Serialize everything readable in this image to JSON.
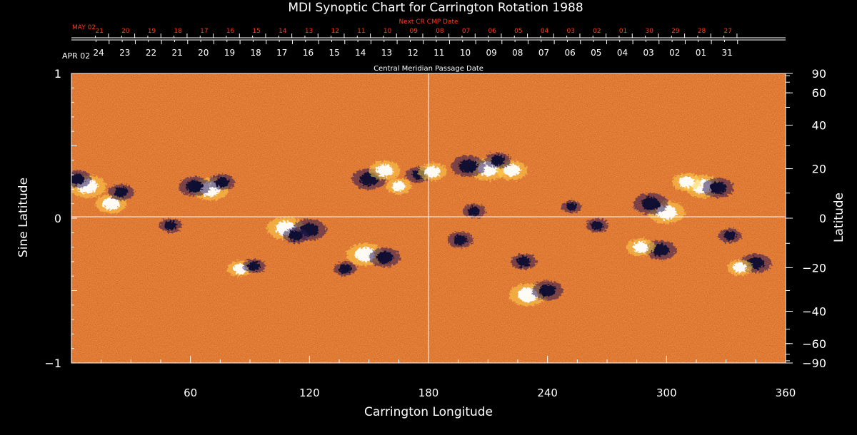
{
  "chart_data": {
    "type": "heatmap",
    "title": "MDI Synoptic Chart for Carrington Rotation 1988",
    "xlabel": "Carrington Longitude",
    "ylabel_left": "Sine Latitude",
    "ylabel_right": "Latitude",
    "xlim": [
      0,
      360
    ],
    "ylim_sine": [
      -1,
      1
    ],
    "x_ticks": [
      60,
      120,
      180,
      240,
      300,
      360
    ],
    "y_left_ticks": [
      {
        "value": 1,
        "label": "1"
      },
      {
        "value": 0,
        "label": "0"
      },
      {
        "value": -1,
        "label": "−1"
      }
    ],
    "y_right_ticks": [
      {
        "deg": 90,
        "label": "90"
      },
      {
        "deg": 60,
        "label": "60"
      },
      {
        "deg": 40,
        "label": "40"
      },
      {
        "deg": 20,
        "label": "20"
      },
      {
        "deg": 0,
        "label": "0"
      },
      {
        "deg": -20,
        "label": "−20"
      },
      {
        "deg": -40,
        "label": "−40"
      },
      {
        "deg": -60,
        "label": "−60"
      },
      {
        "deg": -90,
        "label": "−90"
      }
    ],
    "grid": "crosshair at longitude 180 and sine latitude 0",
    "colors": {
      "background": "#000000",
      "map_base": "#e8521a",
      "positive_polarity": "#ffffff",
      "negative_polarity": "#0a0a30",
      "secondary_axis_text": "#ff3b1f"
    },
    "next_cr_axis": {
      "title": "Next CR CMP Date",
      "start_label": "MAY 02",
      "dates": [
        "21",
        "20",
        "19",
        "18",
        "17",
        "16",
        "15",
        "14",
        "13",
        "12",
        "11",
        "10",
        "09",
        "08",
        "07",
        "06",
        "05",
        "04",
        "03",
        "02",
        "01",
        "30",
        "29",
        "28",
        "27"
      ]
    },
    "cmp_axis": {
      "title": "Central Meridian Passage Date",
      "start_label": "APR 02",
      "dates": [
        "24",
        "23",
        "22",
        "21",
        "20",
        "19",
        "18",
        "17",
        "16",
        "15",
        "14",
        "13",
        "12",
        "11",
        "10",
        "09",
        "08",
        "07",
        "06",
        "05",
        "04",
        "03",
        "02",
        "01",
        "31"
      ]
    },
    "regions": [
      {
        "lon": 8,
        "lat": 0.22,
        "polarity": "positive",
        "strength": 1.0
      },
      {
        "lon": 20,
        "lat": 0.1,
        "polarity": "positive",
        "strength": 0.8
      },
      {
        "lon": 3,
        "lat": 0.27,
        "polarity": "negative",
        "strength": 0.7
      },
      {
        "lon": 25,
        "lat": 0.18,
        "polarity": "negative",
        "strength": 0.6
      },
      {
        "lon": 70,
        "lat": 0.2,
        "polarity": "positive",
        "strength": 1.0
      },
      {
        "lon": 62,
        "lat": 0.22,
        "polarity": "negative",
        "strength": 0.8
      },
      {
        "lon": 76,
        "lat": 0.25,
        "polarity": "negative",
        "strength": 0.6
      },
      {
        "lon": 50,
        "lat": -0.05,
        "polarity": "negative",
        "strength": 0.5
      },
      {
        "lon": 108,
        "lat": -0.07,
        "polarity": "positive",
        "strength": 1.0
      },
      {
        "lon": 120,
        "lat": -0.08,
        "polarity": "negative",
        "strength": 0.9
      },
      {
        "lon": 113,
        "lat": -0.12,
        "polarity": "negative",
        "strength": 0.6
      },
      {
        "lon": 150,
        "lat": 0.27,
        "polarity": "negative",
        "strength": 0.9
      },
      {
        "lon": 158,
        "lat": 0.33,
        "polarity": "positive",
        "strength": 0.8
      },
      {
        "lon": 165,
        "lat": 0.22,
        "polarity": "positive",
        "strength": 0.6
      },
      {
        "lon": 175,
        "lat": 0.3,
        "polarity": "negative",
        "strength": 0.6
      },
      {
        "lon": 182,
        "lat": 0.32,
        "polarity": "positive",
        "strength": 0.7
      },
      {
        "lon": 148,
        "lat": -0.25,
        "polarity": "positive",
        "strength": 1.0
      },
      {
        "lon": 158,
        "lat": -0.27,
        "polarity": "negative",
        "strength": 0.8
      },
      {
        "lon": 138,
        "lat": -0.35,
        "polarity": "negative",
        "strength": 0.5
      },
      {
        "lon": 210,
        "lat": 0.34,
        "polarity": "positive",
        "strength": 1.0
      },
      {
        "lon": 200,
        "lat": 0.36,
        "polarity": "negative",
        "strength": 0.9
      },
      {
        "lon": 222,
        "lat": 0.33,
        "polarity": "positive",
        "strength": 0.8
      },
      {
        "lon": 215,
        "lat": 0.4,
        "polarity": "negative",
        "strength": 0.6
      },
      {
        "lon": 203,
        "lat": 0.05,
        "polarity": "negative",
        "strength": 0.5
      },
      {
        "lon": 196,
        "lat": -0.15,
        "polarity": "negative",
        "strength": 0.6
      },
      {
        "lon": 230,
        "lat": -0.53,
        "polarity": "positive",
        "strength": 1.0
      },
      {
        "lon": 240,
        "lat": -0.5,
        "polarity": "negative",
        "strength": 0.8
      },
      {
        "lon": 228,
        "lat": -0.3,
        "polarity": "negative",
        "strength": 0.6
      },
      {
        "lon": 300,
        "lat": 0.04,
        "polarity": "positive",
        "strength": 1.0
      },
      {
        "lon": 292,
        "lat": 0.1,
        "polarity": "negative",
        "strength": 0.9
      },
      {
        "lon": 318,
        "lat": 0.22,
        "polarity": "positive",
        "strength": 1.0
      },
      {
        "lon": 326,
        "lat": 0.21,
        "polarity": "negative",
        "strength": 0.8
      },
      {
        "lon": 310,
        "lat": 0.25,
        "polarity": "positive",
        "strength": 0.7
      },
      {
        "lon": 297,
        "lat": -0.22,
        "polarity": "negative",
        "strength": 0.8
      },
      {
        "lon": 287,
        "lat": -0.2,
        "polarity": "positive",
        "strength": 0.7
      },
      {
        "lon": 345,
        "lat": -0.31,
        "polarity": "negative",
        "strength": 0.8
      },
      {
        "lon": 337,
        "lat": -0.34,
        "polarity": "positive",
        "strength": 0.6
      },
      {
        "lon": 332,
        "lat": -0.12,
        "polarity": "negative",
        "strength": 0.5
      },
      {
        "lon": 85,
        "lat": -0.35,
        "polarity": "positive",
        "strength": 0.6
      },
      {
        "lon": 92,
        "lat": -0.33,
        "polarity": "negative",
        "strength": 0.5
      },
      {
        "lon": 265,
        "lat": -0.05,
        "polarity": "negative",
        "strength": 0.5
      },
      {
        "lon": 252,
        "lat": 0.08,
        "polarity": "negative",
        "strength": 0.4
      }
    ]
  }
}
